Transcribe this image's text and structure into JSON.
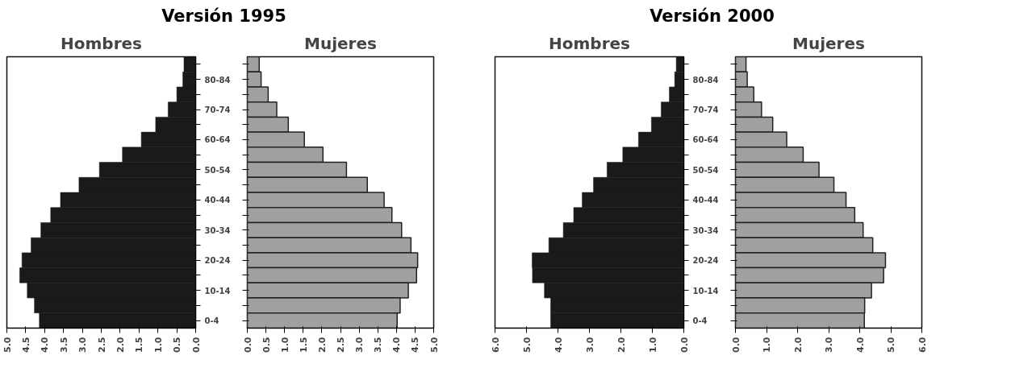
{
  "chart_data": [
    {
      "type": "bar",
      "orientation": "horizontal",
      "title": "Versión 1995",
      "subtitle": "Hombres",
      "grid": false,
      "categories": [
        null,
        "80-84",
        null,
        "70-74",
        null,
        "60-64",
        null,
        "50-54",
        null,
        "40-44",
        null,
        "30-34",
        null,
        "20-24",
        null,
        "10-14",
        null,
        "0-4"
      ],
      "series": [
        {
          "color": "#1a1a1a",
          "values": [
            0.31,
            0.34,
            0.5,
            0.73,
            1.06,
            1.44,
            1.94,
            2.55,
            3.09,
            3.58,
            3.84,
            4.1,
            4.36,
            4.6,
            4.66,
            4.46,
            4.27,
            4.14
          ]
        }
      ],
      "xlim": [
        5,
        0
      ],
      "xticks": [
        {
          "value": 5,
          "label": "5.0"
        },
        {
          "value": 4.5,
          "label": "4.5"
        },
        {
          "value": 4,
          "label": "4.0"
        },
        {
          "value": 3.5,
          "label": "3.5"
        },
        {
          "value": 3,
          "label": "3.0"
        },
        {
          "value": 2.5,
          "label": "2.5"
        },
        {
          "value": 2,
          "label": "2.0"
        },
        {
          "value": 1.5,
          "label": "1.5"
        },
        {
          "value": 1,
          "label": "1.0"
        },
        {
          "value": 0.5,
          "label": "0.5"
        },
        {
          "value": 0,
          "label": "0.0"
        }
      ]
    },
    {
      "type": "bar",
      "orientation": "horizontal",
      "subtitle": "Mujeres",
      "tick_labels": "x",
      "grid": false,
      "categories": [
        null,
        null,
        null,
        null,
        null,
        null,
        null,
        null,
        null,
        null,
        null,
        null,
        null,
        null,
        null,
        null,
        null,
        null
      ],
      "series": [
        {
          "color": "#a0a0a0",
          "values": [
            0.32,
            0.37,
            0.56,
            0.79,
            1.1,
            1.53,
            2.03,
            2.66,
            3.22,
            3.67,
            3.88,
            4.14,
            4.39,
            4.57,
            4.54,
            4.32,
            4.1,
            4.02
          ]
        }
      ],
      "xlim": [
        0,
        5
      ],
      "xticks": [
        {
          "value": 0,
          "label": "0.0"
        },
        {
          "value": 0.5,
          "label": "0.5"
        },
        {
          "value": 1,
          "label": "1.0"
        },
        {
          "value": 1.5,
          "label": "1.5"
        },
        {
          "value": 2,
          "label": "2.0"
        },
        {
          "value": 2.5,
          "label": "2.5"
        },
        {
          "value": 3,
          "label": "3.0"
        },
        {
          "value": 3.5,
          "label": "3.5"
        },
        {
          "value": 4,
          "label": "4.0"
        },
        {
          "value": 4.5,
          "label": "4.5"
        },
        {
          "value": 5,
          "label": "5.0"
        }
      ]
    },
    {
      "type": "bar",
      "orientation": "horizontal",
      "title": "Versión 2000",
      "subtitle": "Hombres",
      "grid": false,
      "categories": [
        null,
        "80-84",
        null,
        "70-74",
        null,
        "60-64",
        null,
        "50-54",
        null,
        "40-44",
        null,
        "30-34",
        null,
        "20-24",
        null,
        "10-14",
        null,
        "0-4"
      ],
      "series": [
        {
          "color": "#1a1a1a",
          "values": [
            0.24,
            0.29,
            0.46,
            0.72,
            1.03,
            1.44,
            1.94,
            2.44,
            2.87,
            3.23,
            3.5,
            3.83,
            4.29,
            4.82,
            4.81,
            4.43,
            4.23,
            4.23
          ]
        }
      ],
      "xlim": [
        6,
        0
      ],
      "xticks": [
        {
          "value": 6,
          "label": "6.0"
        },
        {
          "value": 5,
          "label": "5.0"
        },
        {
          "value": 4,
          "label": "4.0"
        },
        {
          "value": 3,
          "label": "3.0"
        },
        {
          "value": 2,
          "label": "2.0"
        },
        {
          "value": 1,
          "label": "1.0"
        },
        {
          "value": 0,
          "label": "0.0"
        }
      ]
    },
    {
      "type": "bar",
      "orientation": "horizontal",
      "subtitle": "Mujeres",
      "tick_labels": "x",
      "grid": false,
      "categories": [
        null,
        null,
        null,
        null,
        null,
        null,
        null,
        null,
        null,
        null,
        null,
        null,
        null,
        null,
        null,
        null,
        null,
        null
      ],
      "series": [
        {
          "color": "#a0a0a0",
          "values": [
            0.34,
            0.38,
            0.59,
            0.84,
            1.2,
            1.65,
            2.18,
            2.69,
            3.17,
            3.56,
            3.84,
            4.11,
            4.42,
            4.83,
            4.77,
            4.38,
            4.16,
            4.15
          ]
        }
      ],
      "xlim": [
        0,
        6
      ],
      "xticks": [
        {
          "value": 0,
          "label": "0.0"
        },
        {
          "value": 1,
          "label": "1.0"
        },
        {
          "value": 2,
          "label": "2.0"
        },
        {
          "value": 3,
          "label": "3.0"
        },
        {
          "value": 4,
          "label": "4.0"
        },
        {
          "value": 5,
          "label": "5.0"
        },
        {
          "value": 6,
          "label": "6.0"
        }
      ]
    }
  ]
}
